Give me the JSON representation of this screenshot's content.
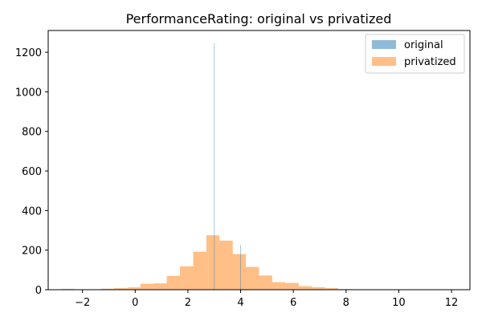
{
  "chart_data": {
    "type": "bar",
    "title": "PerformanceRating: original vs privatized",
    "xlabel": "",
    "ylabel": "",
    "xlim": [
      -3.3,
      12.7
    ],
    "ylim": [
      0,
      1310
    ],
    "xticks": [
      -2,
      0,
      2,
      4,
      6,
      8,
      10,
      12
    ],
    "yticks": [
      0,
      200,
      400,
      600,
      800,
      1000,
      1200
    ],
    "grid": false,
    "legend_position": "top-right",
    "series": [
      {
        "name": "original",
        "color": "#1f77b4",
        "alpha": 0.5,
        "bins": [
          {
            "x0": 2.99,
            "x1": 3.01,
            "value": 1244
          },
          {
            "x0": 3.99,
            "x1": 4.01,
            "value": 226
          }
        ]
      },
      {
        "name": "privatized",
        "color": "#ff7f0e",
        "alpha": 0.5,
        "bins": [
          {
            "x0": -2.8,
            "x1": -2.3,
            "value": 4
          },
          {
            "x0": -2.3,
            "x1": -1.8,
            "value": 1
          },
          {
            "x0": -1.8,
            "x1": -1.3,
            "value": 2
          },
          {
            "x0": -1.3,
            "x1": -0.8,
            "value": 5
          },
          {
            "x0": -0.8,
            "x1": -0.3,
            "value": 8
          },
          {
            "x0": -0.3,
            "x1": 0.2,
            "value": 12
          },
          {
            "x0": 0.2,
            "x1": 0.7,
            "value": 30
          },
          {
            "x0": 0.7,
            "x1": 1.2,
            "value": 32
          },
          {
            "x0": 1.2,
            "x1": 1.7,
            "value": 70
          },
          {
            "x0": 1.7,
            "x1": 2.2,
            "value": 118
          },
          {
            "x0": 2.2,
            "x1": 2.7,
            "value": 192
          },
          {
            "x0": 2.7,
            "x1": 3.2,
            "value": 275
          },
          {
            "x0": 3.2,
            "x1": 3.7,
            "value": 248
          },
          {
            "x0": 3.7,
            "x1": 4.2,
            "value": 180
          },
          {
            "x0": 4.2,
            "x1": 4.7,
            "value": 115
          },
          {
            "x0": 4.7,
            "x1": 5.2,
            "value": 72
          },
          {
            "x0": 5.2,
            "x1": 5.7,
            "value": 38
          },
          {
            "x0": 5.7,
            "x1": 6.2,
            "value": 34
          },
          {
            "x0": 6.2,
            "x1": 6.7,
            "value": 18
          },
          {
            "x0": 6.7,
            "x1": 7.2,
            "value": 13
          },
          {
            "x0": 7.2,
            "x1": 7.7,
            "value": 8
          },
          {
            "x0": 7.7,
            "x1": 8.2,
            "value": 3
          },
          {
            "x0": 8.2,
            "x1": 8.7,
            "value": 2
          },
          {
            "x0": 8.7,
            "x1": 9.2,
            "value": 1
          },
          {
            "x0": 9.2,
            "x1": 9.7,
            "value": 1
          },
          {
            "x0": 9.7,
            "x1": 10.2,
            "value": 1
          },
          {
            "x0": 10.2,
            "x1": 10.7,
            "value": 0
          },
          {
            "x0": 10.7,
            "x1": 11.2,
            "value": 1
          },
          {
            "x0": 11.2,
            "x1": 11.7,
            "value": 0
          },
          {
            "x0": 11.7,
            "x1": 12.2,
            "value": 1
          }
        ]
      }
    ]
  }
}
